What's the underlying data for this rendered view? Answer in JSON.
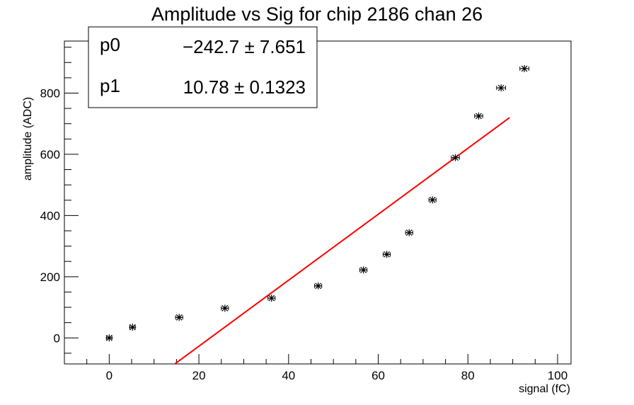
{
  "chart_data": {
    "type": "scatter",
    "title": "Amplitude vs Sig for chip 2186 chan 26",
    "xlabel": "signal (fC)",
    "ylabel": "amplitude (ADC)",
    "xlim": [
      -10,
      103
    ],
    "ylim": [
      -85,
      970
    ],
    "x_ticks": [
      0,
      20,
      40,
      60,
      80,
      100
    ],
    "x_tick_labels": [
      "0",
      "20",
      "40",
      "60",
      "80",
      "100"
    ],
    "y_ticks": [
      0,
      200,
      400,
      600,
      800
    ],
    "y_tick_labels": [
      "0",
      "200",
      "400",
      "600",
      "800"
    ],
    "grid": false,
    "series": [
      {
        "marker": "asterisk",
        "color": "#000000",
        "x": [
          0,
          5.2,
          15.6,
          25.8,
          36.2,
          46.6,
          56.7,
          61.9,
          66.9,
          72.1,
          77.2,
          82.4,
          87.4,
          92.6
        ],
        "y": [
          0,
          35,
          67,
          97,
          130,
          170,
          222,
          273,
          344,
          451,
          589,
          725,
          817,
          880
        ],
        "x_err": [
          0.6,
          0.6,
          0.8,
          0.8,
          0.8,
          0.8,
          0.8,
          0.8,
          0.8,
          0.8,
          0.9,
          0.9,
          1.0,
          1.0
        ]
      }
    ],
    "fit": {
      "function": "pol1",
      "color": "#ff0000",
      "x_range": [
        14.5,
        89.3
      ],
      "p0": -242.7,
      "p1": 10.78
    },
    "stats_box": {
      "rows": [
        {
          "name": "p0",
          "value": "−242.7 ± 7.651"
        },
        {
          "name": "p1",
          "value": "10.78 ± 0.1323"
        }
      ]
    }
  }
}
